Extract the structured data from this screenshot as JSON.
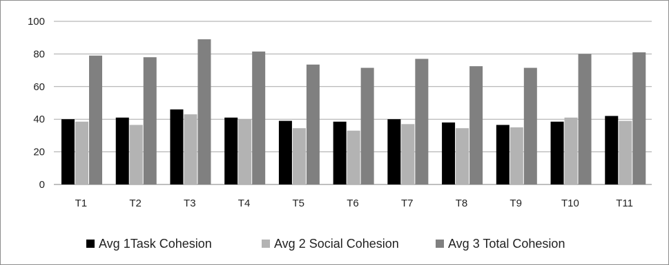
{
  "chart_data": {
    "type": "bar",
    "categories": [
      "T1",
      "T2",
      "T3",
      "T4",
      "T5",
      "T6",
      "T7",
      "T8",
      "T9",
      "T10",
      "T11"
    ],
    "series": [
      {
        "name": "Avg 1Task Cohesion",
        "color": "#000000",
        "values": [
          40,
          41,
          46,
          41,
          39,
          38.5,
          40,
          38,
          36.5,
          38.5,
          42
        ]
      },
      {
        "name": "Avg 2 Social Cohesion",
        "color": "#b3b3b3",
        "values": [
          38.5,
          36.5,
          43,
          40,
          34.5,
          33,
          37,
          34.5,
          35,
          41,
          39
        ]
      },
      {
        "name": "Avg 3 Total Cohesion",
        "color": "#808080",
        "values": [
          79,
          78,
          89,
          81.5,
          73.5,
          71.5,
          77,
          72.5,
          71.5,
          80,
          81
        ]
      }
    ],
    "y_ticks": [
      "0",
      "20",
      "40",
      "60",
      "80",
      "100"
    ],
    "ylim": [
      0,
      100
    ],
    "grid": true,
    "legend_position": "bottom"
  }
}
